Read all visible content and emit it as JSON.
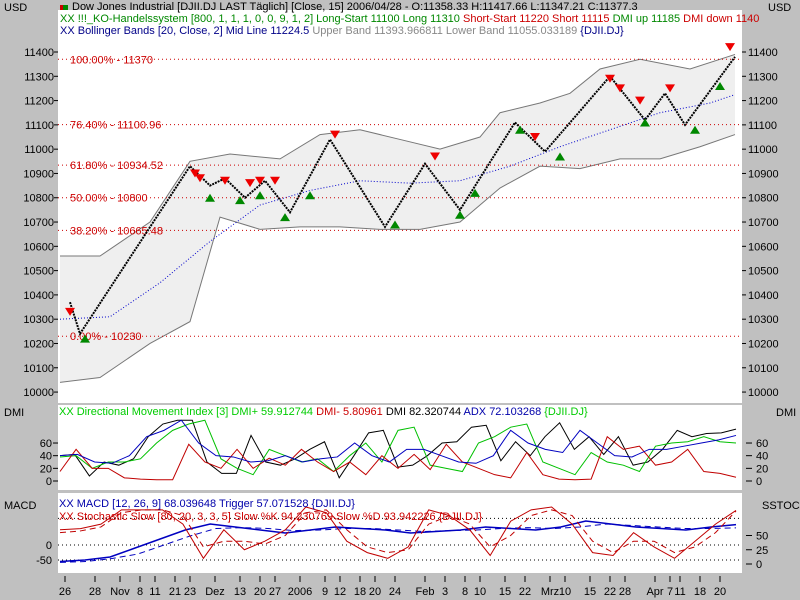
{
  "header": {
    "currency_left": "USD",
    "currency_right": "USD",
    "line1": "Dow Jones Industrial [DJII.DJ LAST Täglich] [Close, 15] 2006/04/28 - O:11358.33 H:11417.66 L:11347.21 C:11377.3",
    "line2a": "XX !!!_KO-Handelssystem [800, 1, 1, 1, 0, 0, 9, 1, 2] Long-Start 11100 Long 11310",
    "line2b": "Short-Start 11220 Short 11115",
    "line2c": "DMI up 11185",
    "line2d": "DMI down 1140",
    "line3a": "XX Bollinger Bands [20, Close, 2] Mid Line 11224.5",
    "line3b": "Upper Band 11393.966811 Lower Band 11055.033189",
    "line3c": "{DJII.DJ}"
  },
  "dmi_header": {
    "label_left": "DMI",
    "label_right": "DMI",
    "a": "XX Directional Movement Index [3] DMI+ 59.912744",
    "b": "DMI- 5.80961",
    "c": "DMI 82.320744",
    "d": "ADX 72.103268",
    "e": "{DJII.DJ}"
  },
  "macd_header": {
    "label_left": "MACD",
    "label_right": "SSTOC",
    "macd": "XX MACD [12, 26, 9] 68.039648 Trigger 57.071528 {DJII.DJ}",
    "stoch": "XX Stochastic Slow [80, 20, 3, 3, 5] Slow %K 94.230769 Slow %D 93.942226 {DJII.DJ}"
  },
  "chart_data": [
    {
      "type": "line",
      "title": "Dow Jones Industrial",
      "ylabel": "USD",
      "ylim": [
        10000,
        11400
      ],
      "yticks": [
        10000,
        10100,
        10200,
        10300,
        10400,
        10500,
        10600,
        10700,
        10800,
        10900,
        11000,
        11100,
        11200,
        11300,
        11400
      ],
      "fib": [
        {
          "label": "100.00% - 11370",
          "v": 11370
        },
        {
          "label": "76.40% - 11100.96",
          "v": 11100.96
        },
        {
          "label": "61.80% - 10934.52",
          "v": 10934.52
        },
        {
          "label": "50.00% - 10800",
          "v": 10800
        },
        {
          "label": "38.20% - 10665.48",
          "v": 10665.48
        },
        {
          "label": "0.00% - 10230",
          "v": 10230
        }
      ],
      "price": [
        [
          2,
          10370
        ],
        [
          4,
          10240
        ],
        [
          26,
          10930
        ],
        [
          30,
          10850
        ],
        [
          33,
          10880
        ],
        [
          37,
          10800
        ],
        [
          41,
          10870
        ],
        [
          46,
          10740
        ],
        [
          54,
          11040
        ],
        [
          65,
          10680
        ],
        [
          73,
          10940
        ],
        [
          80,
          10750
        ],
        [
          91,
          11110
        ],
        [
          97,
          10990
        ],
        [
          110,
          11300
        ],
        [
          117,
          11120
        ],
        [
          121,
          11230
        ],
        [
          125,
          11100
        ],
        [
          135,
          11380
        ]
      ],
      "upper_band": [
        [
          0,
          10560
        ],
        [
          8,
          10560
        ],
        [
          18,
          10700
        ],
        [
          26,
          10950
        ],
        [
          34,
          10980
        ],
        [
          44,
          10960
        ],
        [
          52,
          11060
        ],
        [
          60,
          11080
        ],
        [
          68,
          11040
        ],
        [
          76,
          11000
        ],
        [
          84,
          11050
        ],
        [
          88,
          11150
        ],
        [
          96,
          11190
        ],
        [
          102,
          11230
        ],
        [
          108,
          11330
        ],
        [
          116,
          11370
        ],
        [
          126,
          11330
        ],
        [
          135,
          11390
        ]
      ],
      "lower_band": [
        [
          0,
          10040
        ],
        [
          8,
          10060
        ],
        [
          18,
          10200
        ],
        [
          26,
          10290
        ],
        [
          32,
          10720
        ],
        [
          40,
          10670
        ],
        [
          48,
          10680
        ],
        [
          56,
          10680
        ],
        [
          64,
          10670
        ],
        [
          72,
          10670
        ],
        [
          80,
          10700
        ],
        [
          88,
          10840
        ],
        [
          96,
          10930
        ],
        [
          104,
          10920
        ],
        [
          112,
          10960
        ],
        [
          120,
          10960
        ],
        [
          128,
          11010
        ],
        [
          135,
          11060
        ]
      ],
      "mid_line": [
        [
          0,
          10300
        ],
        [
          10,
          10310
        ],
        [
          20,
          10450
        ],
        [
          30,
          10620
        ],
        [
          40,
          10770
        ],
        [
          50,
          10830
        ],
        [
          60,
          10870
        ],
        [
          70,
          10860
        ],
        [
          80,
          10870
        ],
        [
          90,
          10930
        ],
        [
          100,
          11010
        ],
        [
          110,
          11080
        ],
        [
          120,
          11150
        ],
        [
          130,
          11190
        ],
        [
          135,
          11224.5
        ]
      ],
      "short_signals": [
        [
          2,
          10330
        ],
        [
          27,
          10900
        ],
        [
          28,
          10880
        ],
        [
          33,
          10870
        ],
        [
          38,
          10860
        ],
        [
          40,
          10870
        ],
        [
          43,
          10870
        ],
        [
          55,
          11060
        ],
        [
          75,
          10970
        ],
        [
          95,
          11050
        ],
        [
          110,
          11290
        ],
        [
          112,
          11250
        ],
        [
          116,
          11200
        ],
        [
          122,
          11250
        ],
        [
          134,
          11420
        ]
      ],
      "long_signals": [
        [
          5,
          10220
        ],
        [
          30,
          10800
        ],
        [
          36,
          10790
        ],
        [
          40,
          10810
        ],
        [
          45,
          10720
        ],
        [
          50,
          10810
        ],
        [
          67,
          10690
        ],
        [
          80,
          10730
        ],
        [
          83,
          10820
        ],
        [
          92,
          11080
        ],
        [
          100,
          10970
        ],
        [
          117,
          11110
        ],
        [
          127,
          11080
        ],
        [
          132,
          11260
        ]
      ]
    },
    {
      "type": "line",
      "title": "Directional Movement Index",
      "ylim": [
        0,
        100
      ],
      "yticks": [
        0,
        20,
        40,
        60
      ],
      "series": [
        {
          "name": "DMI",
          "color": "#000000",
          "values": [
            40,
            42,
            8,
            30,
            25,
            35,
            70,
            90,
            96,
            96,
            30,
            12,
            12,
            72,
            30,
            25,
            35,
            50,
            62,
            5,
            40,
            76,
            80,
            22,
            25,
            40,
            60,
            62,
            85,
            88,
            32,
            62,
            40,
            70,
            92,
            50,
            70,
            42,
            70,
            25,
            30,
            50,
            80,
            70,
            75,
            76,
            82
          ]
        },
        {
          "name": "DMI+",
          "color": "#00c000",
          "values": [
            38,
            40,
            20,
            30,
            30,
            35,
            60,
            80,
            90,
            96,
            35,
            20,
            10,
            50,
            40,
            30,
            35,
            15,
            40,
            60,
            30,
            80,
            85,
            25,
            20,
            15,
            60,
            70,
            85,
            90,
            30,
            20,
            10,
            45,
            30,
            25,
            15,
            55,
            60,
            62,
            70,
            62,
            60
          ]
        },
        {
          "name": "DMI-",
          "color": "#c00000",
          "values": [
            15,
            50,
            20,
            20,
            5,
            3,
            2,
            2,
            58,
            30,
            20,
            50,
            20,
            36,
            25,
            50,
            30,
            15,
            30,
            10,
            40,
            20,
            42,
            18,
            58,
            30,
            20,
            10,
            5,
            45,
            10,
            3,
            2,
            3,
            70,
            50,
            55,
            25,
            30,
            50,
            15,
            12,
            6
          ]
        },
        {
          "name": "ADX",
          "color": "#0000c0",
          "values": [
            40,
            42,
            30,
            28,
            40,
            70,
            80,
            96,
            60,
            40,
            38,
            30,
            32,
            40,
            30,
            35,
            38,
            60,
            40,
            30,
            50,
            50,
            40,
            30,
            28,
            40,
            80,
            60,
            50,
            45,
            80,
            60,
            40,
            38,
            50,
            50,
            55,
            60,
            65,
            72
          ]
        }
      ]
    },
    {
      "type": "line",
      "title": "MACD / Stochastic Slow",
      "yticks_left": [
        -50,
        0
      ],
      "yticks_right": [
        0,
        25,
        50
      ],
      "series": [
        {
          "name": "MACD",
          "color": "#0000c0",
          "values": [
            -55,
            -50,
            -40,
            -10,
            20,
            50,
            70,
            60,
            50,
            40,
            50,
            60,
            55,
            50,
            40,
            45,
            50,
            60,
            55,
            50,
            60,
            80,
            70,
            60,
            55,
            50,
            60,
            68
          ]
        },
        {
          "name": "Trigger",
          "color": "#0000c0",
          "values": [
            -58,
            -55,
            -45,
            -30,
            0,
            30,
            55,
            58,
            55,
            48,
            50,
            55,
            55,
            50,
            45,
            48,
            50,
            55,
            58,
            55,
            60,
            70,
            65,
            60,
            55,
            55,
            57
          ]
        },
        {
          "name": "Slow %K",
          "color": "#c00000",
          "values": [
            60,
            62,
            70,
            95,
            95,
            95,
            70,
            10,
            60,
            25,
            40,
            60,
            100,
            90,
            40,
            20,
            10,
            30,
            95,
            85,
            60,
            15,
            75,
            95,
            100,
            70,
            20,
            15,
            55,
            30,
            10,
            40,
            70,
            94
          ]
        },
        {
          "name": "Slow %D",
          "color": "#c00000",
          "values": [
            55,
            58,
            65,
            90,
            95,
            95,
            85,
            30,
            40,
            40,
            35,
            50,
            90,
            95,
            60,
            30,
            20,
            25,
            70,
            85,
            70,
            30,
            50,
            85,
            95,
            85,
            40,
            20,
            40,
            40,
            20,
            30,
            55,
            93
          ]
        }
      ]
    },
    {
      "type": "axis",
      "xticks": [
        [
          1,
          "26"
        ],
        [
          7,
          "28"
        ],
        [
          12,
          "Nov"
        ],
        [
          16,
          "8"
        ],
        [
          19,
          "11"
        ],
        [
          23,
          "21"
        ],
        [
          26,
          "23"
        ],
        [
          31,
          "Dez"
        ],
        [
          36,
          "13"
        ],
        [
          40,
          "20"
        ],
        [
          43,
          "27"
        ],
        [
          48,
          "2006"
        ],
        [
          53,
          "9"
        ],
        [
          56,
          "12"
        ],
        [
          60,
          "18"
        ],
        [
          63,
          "20"
        ],
        [
          67,
          "24"
        ],
        [
          73,
          "Feb"
        ],
        [
          77,
          "3"
        ],
        [
          81,
          "8"
        ],
        [
          84,
          "10"
        ],
        [
          89,
          "15"
        ],
        [
          93,
          "22"
        ],
        [
          98,
          "Mrz"
        ],
        [
          101,
          "10"
        ],
        [
          106,
          "15"
        ],
        [
          110,
          "22"
        ],
        [
          113,
          "28"
        ],
        [
          119,
          "Apr"
        ],
        [
          122,
          "7"
        ],
        [
          124,
          "11"
        ],
        [
          128,
          "18"
        ],
        [
          132,
          "20"
        ]
      ]
    }
  ]
}
